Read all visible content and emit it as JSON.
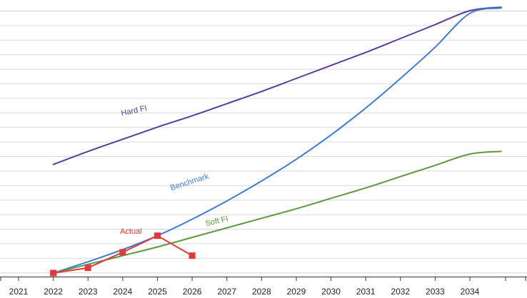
{
  "chart_data": {
    "type": "line",
    "title": "",
    "xlabel": "",
    "ylabel": "",
    "x_ticks": [
      "2021",
      "2022",
      "2023",
      "2024",
      "2025",
      "2026",
      "2027",
      "2028",
      "2029",
      "2030",
      "2031",
      "2032",
      "2033",
      "2034"
    ],
    "xlim": [
      2020.0,
      2034.97
    ],
    "ylim": [
      0,
      30.5
    ],
    "grid_lines": 30,
    "grid": true,
    "series": [
      {
        "name": "Hard FI",
        "color": "#5b3a9c",
        "x": [
          2022,
          2023,
          2024,
          2025,
          2026,
          2027,
          2028,
          2029,
          2030,
          2031,
          2032,
          2033,
          2034,
          2034.9
        ],
        "y": [
          12.5,
          14.0,
          15.4,
          16.8,
          18.1,
          19.5,
          20.9,
          22.4,
          23.9,
          25.4,
          27.0,
          28.6,
          30.2,
          30.6
        ],
        "label_anchor": {
          "x": 2023.97,
          "y": 18.1,
          "angle": -12
        }
      },
      {
        "name": "Benchmark",
        "color": "#3c7ddc",
        "x": [
          2022,
          2023,
          2024,
          2025,
          2026,
          2027,
          2028,
          2029,
          2030,
          2031,
          2032,
          2033,
          2034,
          2034.9
        ],
        "y": [
          0.0,
          1.3,
          2.7,
          4.3,
          6.2,
          8.3,
          10.6,
          13.1,
          15.9,
          19.0,
          22.4,
          26.0,
          29.9,
          30.5
        ],
        "label_anchor": {
          "x": 2025.4,
          "y": 9.5,
          "angle": -18
        }
      },
      {
        "name": "Soft FI",
        "color": "#5a9a3c",
        "x": [
          2022,
          2023,
          2024,
          2025,
          2026,
          2027,
          2028,
          2029,
          2030,
          2031,
          2032,
          2033,
          2034,
          2034.9
        ],
        "y": [
          0.0,
          1.0,
          2.0,
          3.0,
          4.1,
          5.2,
          6.3,
          7.4,
          8.6,
          9.8,
          11.1,
          12.4,
          13.7,
          14.0
        ],
        "label_anchor": {
          "x": 2026.4,
          "y": 5.4,
          "angle": -13
        }
      },
      {
        "name": "Actual",
        "color": "#e03a3a",
        "markers": true,
        "x": [
          2022,
          2023,
          2024,
          2025,
          2026
        ],
        "y": [
          0.0,
          0.6,
          2.4,
          4.3,
          2.0
        ],
        "label_anchor": {
          "x": 2023.92,
          "y": 4.5,
          "angle": 0
        }
      }
    ]
  }
}
